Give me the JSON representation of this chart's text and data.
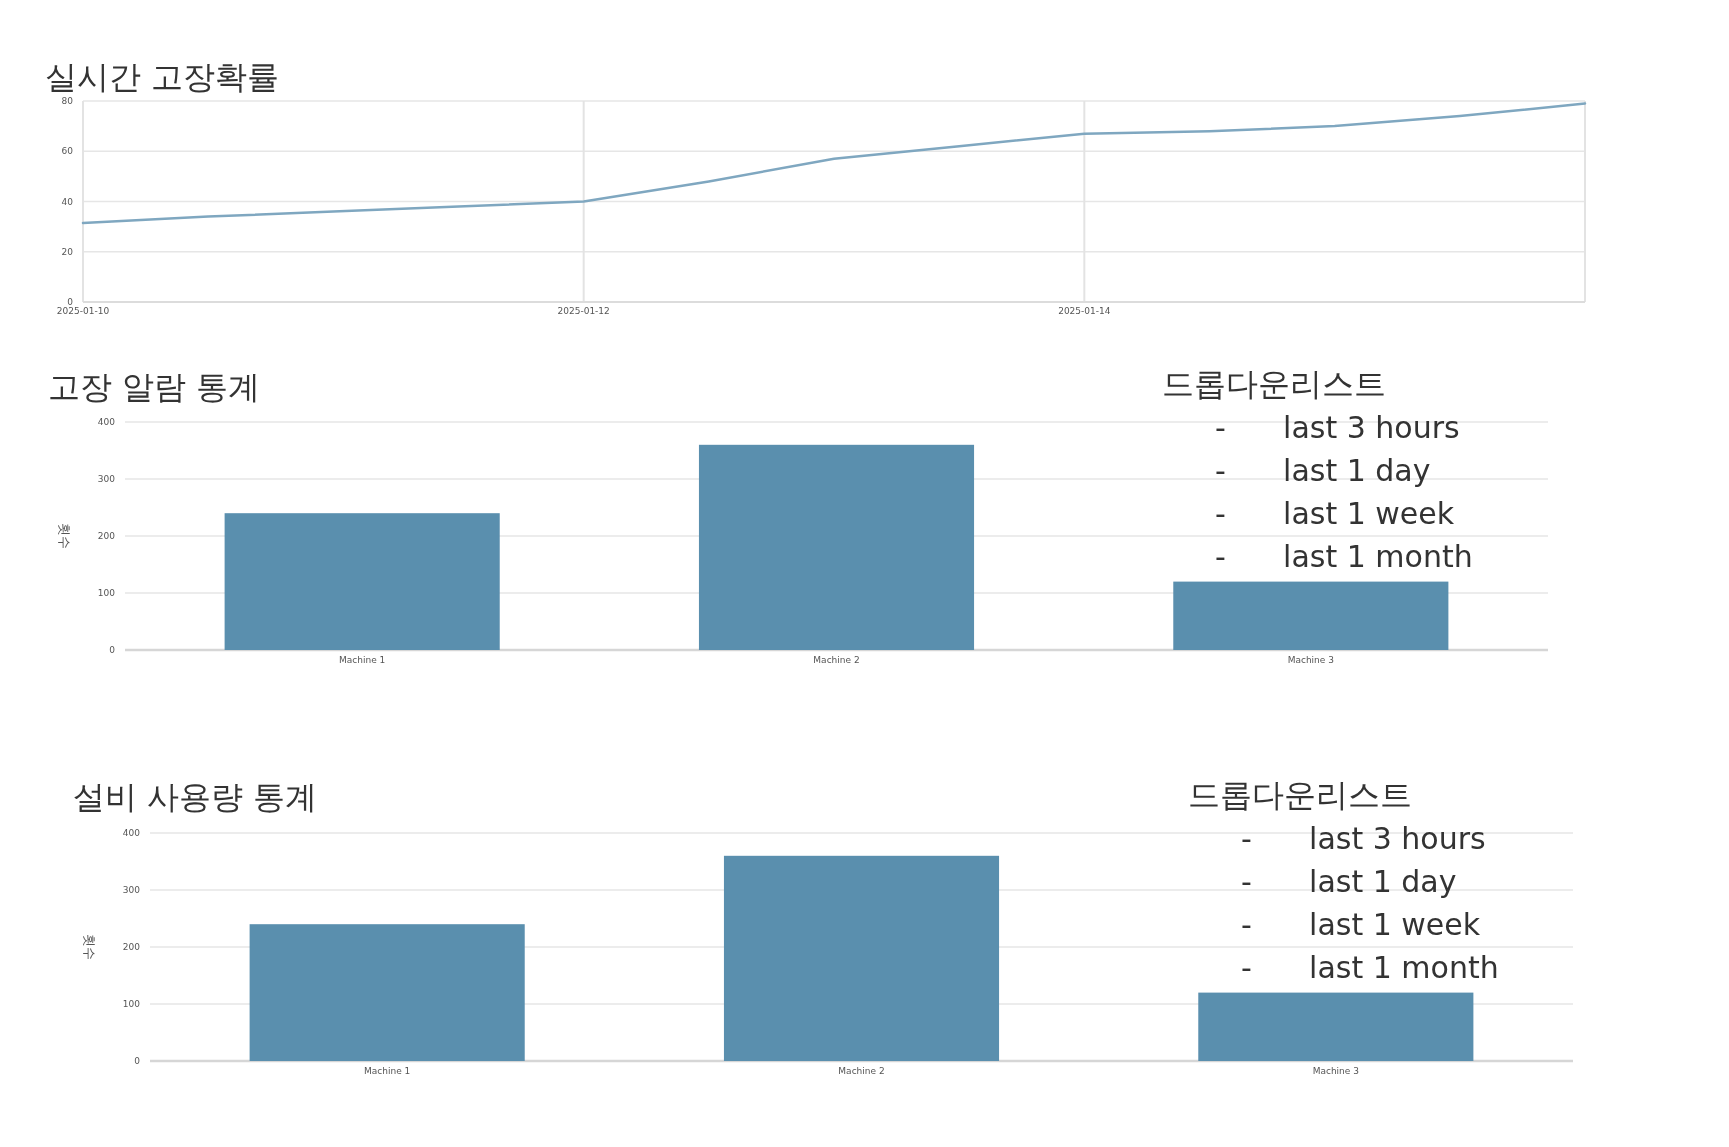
{
  "chart_data": [
    {
      "type": "line",
      "title": "실시간 고장확률",
      "x": [
        "2025-01-10",
        "2025-01-10T12:00",
        "2025-01-11",
        "2025-01-11T12:00",
        "2025-01-12",
        "2025-01-12T12:00",
        "2025-01-13",
        "2025-01-13T12:00",
        "2025-01-14",
        "2025-01-14T12:00",
        "2025-01-15",
        "2025-01-15T12:00",
        "2025-01-16"
      ],
      "values": [
        31.5,
        34,
        36,
        38,
        40,
        48,
        57,
        62,
        67,
        68,
        70,
        74,
        79
      ],
      "color": "#7fa7c0",
      "xlim": [
        "2025-01-10",
        "2025-01-16"
      ],
      "xticks": [
        {
          "value": "2025-01-10",
          "label": "2025-01-10"
        },
        {
          "value": "2025-01-12",
          "label": "2025-01-12"
        },
        {
          "value": "2025-01-14",
          "label": "2025-01-14"
        }
      ],
      "ylim": [
        0,
        80
      ],
      "yticks": [
        0,
        20,
        40,
        60,
        80
      ],
      "grid": true,
      "marker": "none"
    },
    {
      "type": "bar",
      "title": "고장 알람 통계",
      "ylabel": "횟수",
      "categories": [
        "Machine 1",
        "Machine 2",
        "Machine 3"
      ],
      "values": [
        240,
        360,
        120
      ],
      "color": "#5a8fae",
      "ylim": [
        0,
        400
      ],
      "yticks": [
        0,
        100,
        200,
        300,
        400
      ],
      "grid": "y",
      "annotations": [
        "드롭다운리스트",
        "-      last 3 hours",
        "-      last 1 day",
        "-      last 1 week",
        "-      last 1 month"
      ]
    },
    {
      "type": "bar",
      "title": "설비 사용량 통계",
      "ylabel": "횟수",
      "categories": [
        "Machine 1",
        "Machine 2",
        "Machine 3"
      ],
      "values": [
        240,
        360,
        120
      ],
      "color": "#5a8fae",
      "ylim": [
        0,
        400
      ],
      "yticks": [
        0,
        100,
        200,
        300,
        400
      ],
      "grid": "y",
      "annotations": [
        "드롭다운리스트",
        "-      last 3 hours",
        "-      last 1 day",
        "-      last 1 week",
        "-      last 1 month"
      ]
    }
  ]
}
